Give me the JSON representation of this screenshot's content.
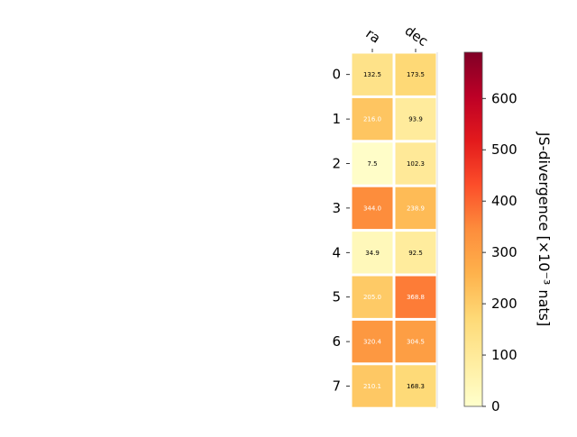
{
  "chart_data": {
    "type": "heatmap",
    "columns": [
      "ra",
      "dec"
    ],
    "rows": [
      "0",
      "1",
      "2",
      "3",
      "4",
      "5",
      "6",
      "7"
    ],
    "values": [
      [
        132.5,
        173.5
      ],
      [
        216.0,
        93.9
      ],
      [
        7.5,
        102.3
      ],
      [
        344.0,
        238.9
      ],
      [
        34.9,
        92.5
      ],
      [
        205.0,
        368.8
      ],
      [
        320.4,
        304.5
      ],
      [
        210.1,
        168.3
      ]
    ],
    "value_labels": [
      [
        "132.5",
        "173.5"
      ],
      [
        "216.0",
        "93.9"
      ],
      [
        "7.5",
        "102.3"
      ],
      [
        "344.0",
        "238.9"
      ],
      [
        "34.9",
        "92.5"
      ],
      [
        "205.0",
        "368.8"
      ],
      [
        "320.4",
        "304.5"
      ],
      [
        "210.1",
        "168.3"
      ]
    ],
    "colorbar": {
      "label": "JS-divergence [×10⁻³ nats]",
      "range": [
        0,
        690
      ],
      "ticks": [
        0,
        100,
        200,
        300,
        400,
        500,
        600
      ],
      "colormap": "YlOrRd",
      "colormap_stops": [
        "#ffffcc",
        "#ffeda0",
        "#fed976",
        "#feb24c",
        "#fd8d3c",
        "#fc4e2a",
        "#e31a1c",
        "#bd0026",
        "#800026"
      ]
    },
    "text_color_dark": "#000000",
    "text_color_light": "#ffffff",
    "grid_color": "#ffffff"
  }
}
